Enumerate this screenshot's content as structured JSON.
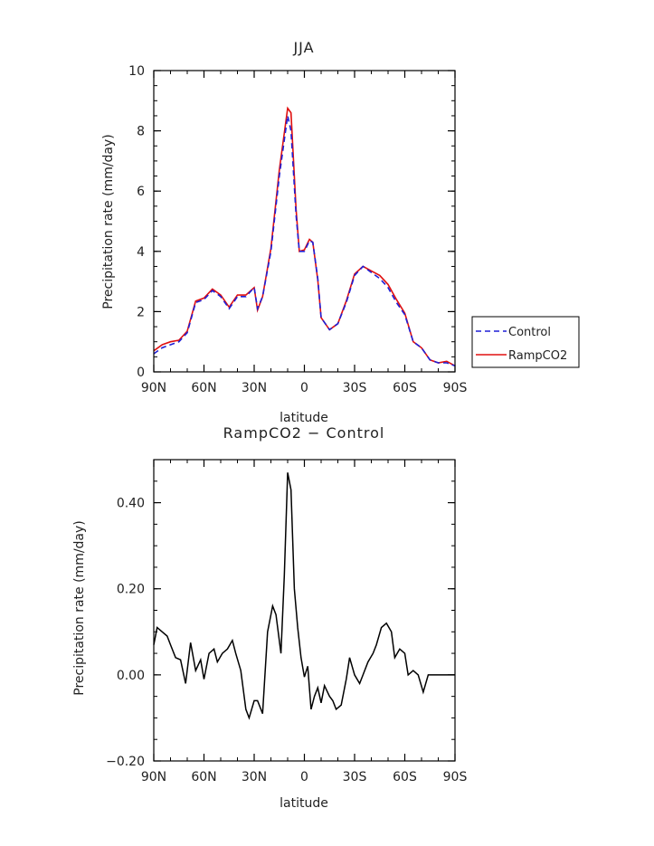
{
  "chart_data": [
    {
      "type": "line",
      "title": "JJA",
      "xlabel": "latitude",
      "ylabel": "Precipitation rate (mm/day)",
      "x": [
        90,
        85,
        80,
        75,
        70,
        65,
        60,
        55,
        50,
        45,
        40,
        35,
        30,
        28,
        25,
        20,
        15,
        10,
        8,
        5,
        3,
        0,
        -3,
        -5,
        -8,
        -10,
        -15,
        -20,
        -25,
        -30,
        -35,
        -40,
        -45,
        -50,
        -55,
        -60,
        -65,
        -70,
        -75,
        -80,
        -85,
        -90
      ],
      "xticks": [
        {
          "value": 90,
          "label": "90N"
        },
        {
          "value": 60,
          "label": "60N"
        },
        {
          "value": 30,
          "label": "30N"
        },
        {
          "value": 0,
          "label": "0"
        },
        {
          "value": -30,
          "label": "30S"
        },
        {
          "value": -60,
          "label": "60S"
        },
        {
          "value": -90,
          "label": "90S"
        }
      ],
      "xlim": [
        90,
        -90
      ],
      "ylim": [
        0,
        10
      ],
      "yticks": [
        0,
        2,
        4,
        6,
        8,
        10
      ],
      "grid": false,
      "legend_position": "outside-right",
      "series": [
        {
          "name": "Control",
          "color": "#1f1fd6",
          "style": "dashed",
          "values": [
            0.6,
            0.8,
            0.9,
            1.0,
            1.3,
            2.3,
            2.4,
            2.7,
            2.5,
            2.1,
            2.5,
            2.5,
            2.8,
            2.1,
            2.5,
            4.0,
            6.5,
            8.5,
            8.0,
            5.2,
            4.0,
            4.0,
            4.35,
            4.3,
            3.1,
            1.8,
            1.4,
            1.6,
            2.3,
            3.2,
            3.5,
            3.3,
            3.1,
            2.8,
            2.3,
            1.9,
            1.0,
            0.8,
            0.4,
            0.3,
            0.3,
            0.2
          ]
        },
        {
          "name": "RampCO2",
          "color": "#e01010",
          "style": "solid",
          "values": [
            0.7,
            0.9,
            1.0,
            1.05,
            1.35,
            2.35,
            2.45,
            2.75,
            2.55,
            2.15,
            2.55,
            2.55,
            2.8,
            2.05,
            2.5,
            4.1,
            6.7,
            8.75,
            8.6,
            5.4,
            4.0,
            4.05,
            4.4,
            4.3,
            3.05,
            1.8,
            1.4,
            1.6,
            2.35,
            3.25,
            3.5,
            3.35,
            3.2,
            2.9,
            2.4,
            1.95,
            1.0,
            0.8,
            0.4,
            0.3,
            0.35,
            0.2
          ]
        }
      ]
    },
    {
      "type": "line",
      "title": "RampCO2 − Control",
      "xlabel": "latitude",
      "ylabel": "Precipitation rate (mm/day)",
      "x": [
        90,
        88,
        85,
        82,
        80,
        77,
        74,
        71,
        68,
        65,
        62,
        60,
        57,
        54,
        52,
        49,
        46,
        43,
        41,
        38,
        35,
        33,
        30,
        28,
        25,
        22,
        19,
        17,
        14,
        12,
        10,
        8,
        6,
        4,
        2,
        0,
        -2,
        -4,
        -6,
        -8,
        -10,
        -12,
        -15,
        -17,
        -19,
        -22,
        -25,
        -27,
        -30,
        -33,
        -35,
        -38,
        -41,
        -43,
        -46,
        -49,
        -52,
        -54,
        -57,
        -60,
        -62,
        -65,
        -68,
        -71,
        -74,
        -76,
        -79,
        -82,
        -85,
        -87,
        -90
      ],
      "values": [
        0.07,
        0.11,
        0.1,
        0.09,
        0.07,
        0.04,
        0.035,
        -0.02,
        0.075,
        0.01,
        0.035,
        -0.01,
        0.05,
        0.06,
        0.03,
        0.05,
        0.06,
        0.08,
        0.05,
        0.01,
        -0.08,
        -0.1,
        -0.06,
        -0.06,
        -0.09,
        0.1,
        0.16,
        0.14,
        0.05,
        0.23,
        0.47,
        0.43,
        0.2,
        0.11,
        0.04,
        -0.005,
        0.02,
        -0.08,
        -0.05,
        -0.03,
        -0.065,
        -0.025,
        -0.05,
        -0.06,
        -0.08,
        -0.07,
        -0.01,
        0.04,
        0.0,
        -0.02,
        0.0,
        0.03,
        0.05,
        0.07,
        0.11,
        0.12,
        0.1,
        0.04,
        0.06,
        0.05,
        0.0,
        0.01,
        0.0,
        -0.04,
        0.0,
        0.0,
        0.0,
        0.0,
        0.0,
        0.0,
        0.0
      ],
      "series_color": "#000000",
      "xticks": [
        {
          "value": 90,
          "label": "90N"
        },
        {
          "value": 60,
          "label": "60N"
        },
        {
          "value": 30,
          "label": "30N"
        },
        {
          "value": 0,
          "label": "0"
        },
        {
          "value": -30,
          "label": "30S"
        },
        {
          "value": -60,
          "label": "60S"
        },
        {
          "value": -90,
          "label": "90S"
        }
      ],
      "xlim": [
        90,
        -90
      ],
      "ylim": [
        -0.2,
        0.5
      ],
      "yticks": [
        {
          "value": -0.2,
          "label": "−0.20"
        },
        {
          "value": 0.0,
          "label": "0.00"
        },
        {
          "value": 0.2,
          "label": "0.20"
        },
        {
          "value": 0.4,
          "label": "0.40"
        }
      ],
      "grid": false
    }
  ]
}
